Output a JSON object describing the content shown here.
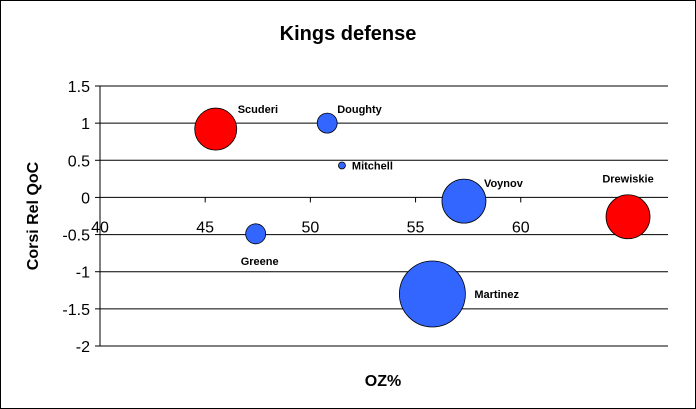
{
  "chart_data": {
    "type": "scatter",
    "title": "Kings defense",
    "xlabel": "OZ%",
    "ylabel": "Corsi Rel QoC",
    "xlim": [
      40,
      67
    ],
    "ylim": [
      -2,
      1.5
    ],
    "x_ticks": [
      "40",
      "45",
      "50",
      "55",
      "60",
      "65"
    ],
    "x_tick_values": [
      40,
      45,
      50,
      55,
      60,
      65
    ],
    "y_ticks": [
      "1.5",
      "1",
      "0.5",
      "0",
      "-0.5",
      "-1",
      "-1.5",
      "-2"
    ],
    "y_tick_values": [
      1.5,
      1,
      0.5,
      0,
      -0.5,
      -1,
      -1.5,
      -2
    ],
    "grid": true,
    "legend": "none",
    "colors": {
      "blue": "#3366ff",
      "red": "#ff0000"
    },
    "points": [
      {
        "name": "Scuderi",
        "x": 45.5,
        "y": 0.92,
        "size": 21,
        "color": "#ff0000"
      },
      {
        "name": "Doughty",
        "x": 50.8,
        "y": 1.0,
        "size": 10,
        "color": "#3366ff"
      },
      {
        "name": "Mitchell",
        "x": 51.5,
        "y": 0.43,
        "size": 3.5,
        "color": "#3366ff"
      },
      {
        "name": "Voynov",
        "x": 57.3,
        "y": -0.05,
        "size": 22,
        "color": "#3366ff"
      },
      {
        "name": "Drewiskie",
        "x": 65.1,
        "y": -0.26,
        "size": 22,
        "color": "#ff0000"
      },
      {
        "name": "Greene",
        "x": 47.4,
        "y": -0.49,
        "size": 10,
        "color": "#3366ff"
      },
      {
        "name": "Martinez",
        "x": 55.8,
        "y": -1.3,
        "size": 33,
        "color": "#3366ff"
      }
    ]
  }
}
